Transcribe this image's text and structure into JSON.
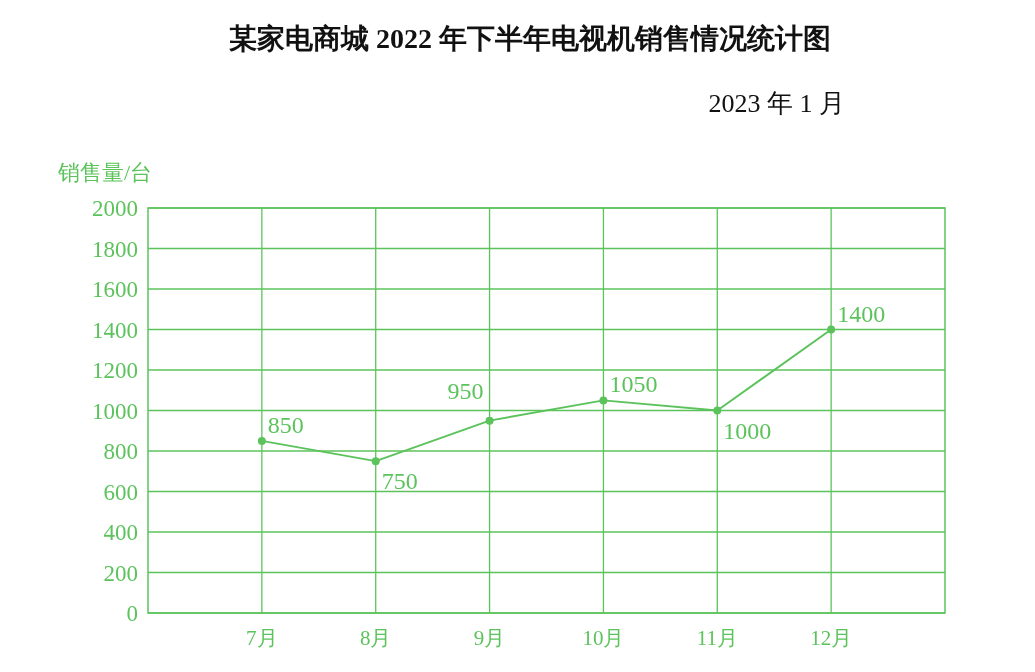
{
  "chart_data": {
    "type": "line",
    "title": "某家电商城 2022 年下半年电视机销售情况统计图",
    "subtitle": "2023 年 1 月",
    "ylabel": "销售量/台",
    "categories": [
      "7月",
      "8月",
      "9月",
      "10月",
      "11月",
      "12月"
    ],
    "series": [
      {
        "color": "#5cc35c",
        "values": [
          850,
          750,
          950,
          1050,
          1000,
          1400
        ]
      }
    ],
    "ylim": [
      0,
      2000
    ],
    "yticks": [
      0,
      200,
      400,
      600,
      800,
      1000,
      1200,
      1400,
      1600,
      1800,
      2000
    ],
    "grid": true,
    "data_labels": true,
    "marker": "circle",
    "line_style": "solid"
  }
}
